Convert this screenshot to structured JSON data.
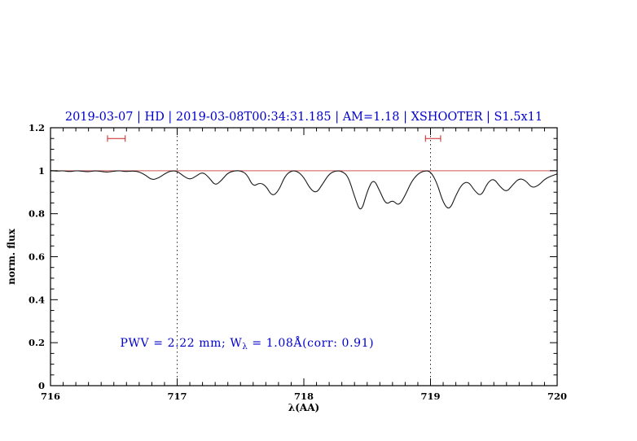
{
  "page": {
    "background": "#ffffff"
  },
  "chart_data": {
    "type": "line",
    "title": "2019-03-07 | HD | 2019-03-08T00:34:31.185 | AM=1.18 | XSHOOTER | S1.5x11",
    "title_color": "#0000cd",
    "xlabel": "λ(AA)",
    "ylabel": "norm. flux",
    "xlim": [
      716,
      720
    ],
    "ylim": [
      0,
      1.2
    ],
    "x_ticks": [
      716,
      717,
      718,
      719,
      720
    ],
    "x_tick_labels": [
      "716",
      "717",
      "718",
      "719",
      "720"
    ],
    "y_ticks": [
      0,
      0.2,
      0.4,
      0.6,
      0.8,
      1,
      1.2
    ],
    "y_tick_labels": [
      "0",
      "0.2",
      "0.4",
      "0.6",
      "0.8",
      "1",
      "1.2"
    ],
    "x_minor_step": 0.1,
    "y_minor_step": 0.05,
    "grid": false,
    "legend": null,
    "vlines": {
      "x": [
        717,
        719
      ],
      "color": "#222222",
      "style": "dotted"
    },
    "hline": {
      "y": 1,
      "color": "#d05555"
    },
    "range_markers": {
      "y": 1.15,
      "color": "#cc2222",
      "spans": [
        [
          716.45,
          716.59
        ],
        [
          718.96,
          719.08
        ]
      ]
    },
    "annotation": {
      "text": "PWV = 2.22 mm; W_λ = 1.08Å(corr: 0.91)",
      "x": 716.55,
      "y": 0.2,
      "color": "#0000cd",
      "parts": [
        {
          "t": "PWV = 2.22 mm; W"
        },
        {
          "t": "λ",
          "sub": true
        },
        {
          "t": " = 1.08Å(corr: 0.91)"
        }
      ]
    },
    "series": [
      {
        "name": "telluric-spectrum",
        "color": "#1a1a1a",
        "x": [
          716,
          716.05,
          716.1,
          716.15,
          716.2,
          716.25,
          716.3,
          716.35,
          716.4,
          716.45,
          716.5,
          716.55,
          716.6,
          716.65,
          716.7,
          716.75,
          716.8,
          716.85,
          716.9,
          716.95,
          717,
          717.05,
          717.1,
          717.15,
          717.2,
          717.25,
          717.3,
          717.35,
          717.4,
          717.45,
          717.5,
          717.55,
          717.6,
          717.65,
          717.7,
          717.75,
          717.8,
          717.85,
          717.9,
          717.95,
          718,
          718.05,
          718.1,
          718.15,
          718.2,
          718.25,
          718.3,
          718.35,
          718.4,
          718.45,
          718.5,
          718.55,
          718.6,
          718.65,
          718.7,
          718.75,
          718.8,
          718.85,
          718.9,
          718.95,
          719,
          719.05,
          719.1,
          719.15,
          719.2,
          719.25,
          719.3,
          719.35,
          719.4,
          719.45,
          719.5,
          719.55,
          719.6,
          719.65,
          719.7,
          719.75,
          719.8,
          719.85,
          719.9,
          719.95,
          720
        ],
        "y": [
          1.0,
          0.998,
          1.0,
          0.996,
          1.0,
          0.998,
          0.995,
          1.0,
          0.997,
          0.993,
          0.998,
          1.0,
          0.996,
          0.999,
          0.995,
          0.98,
          0.957,
          0.965,
          0.985,
          1.0,
          0.998,
          0.975,
          0.958,
          0.975,
          0.995,
          0.97,
          0.93,
          0.955,
          0.99,
          1.0,
          1.0,
          0.985,
          0.925,
          0.945,
          0.93,
          0.88,
          0.905,
          0.975,
          1.0,
          0.998,
          0.97,
          0.915,
          0.895,
          0.94,
          0.985,
          1.0,
          0.998,
          0.975,
          0.88,
          0.8,
          0.905,
          0.965,
          0.905,
          0.84,
          0.865,
          0.835,
          0.885,
          0.95,
          0.985,
          1.0,
          0.998,
          0.945,
          0.85,
          0.815,
          0.885,
          0.94,
          0.95,
          0.905,
          0.88,
          0.945,
          0.965,
          0.925,
          0.9,
          0.935,
          0.965,
          0.955,
          0.92,
          0.93,
          0.96,
          0.975,
          0.985
        ]
      }
    ]
  }
}
